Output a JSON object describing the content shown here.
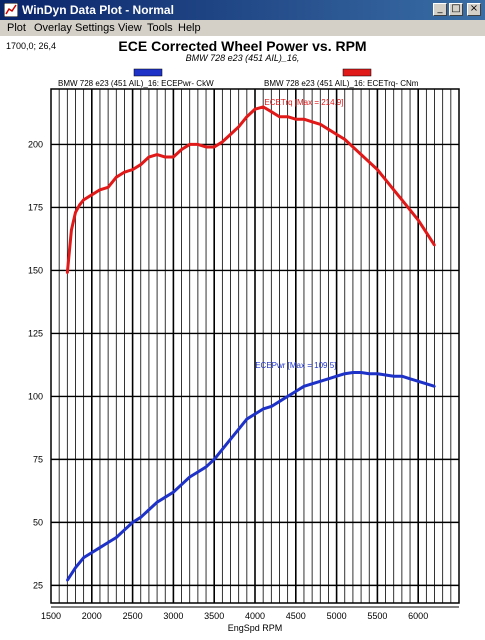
{
  "window": {
    "title": "WinDyn Data Plot - Normal",
    "buttons": {
      "minimize": "_",
      "maximize": "□",
      "close": "×"
    }
  },
  "menu": {
    "items": [
      {
        "name": "plot",
        "label": "Plot"
      },
      {
        "name": "overlay",
        "label": "Overlay"
      },
      {
        "name": "settings",
        "label": "Settings"
      },
      {
        "name": "view",
        "label": "View"
      },
      {
        "name": "tools",
        "label": "Tools"
      },
      {
        "name": "help",
        "label": "Help"
      }
    ]
  },
  "cursor_readout": "1700,0; 26,4",
  "chart_data": {
    "type": "line",
    "title": "ECE Corrected Wheel Power vs. RPM",
    "subtitle": "BMW 728 e23 (451 AIL)_16,",
    "xlabel": "EngSpd  RPM",
    "ylabel": "",
    "xlim": [
      1500,
      6500
    ],
    "ylim": [
      18,
      222
    ],
    "x_ticks": [
      1500,
      2000,
      2500,
      3000,
      3500,
      4000,
      4500,
      5000,
      5500,
      6000
    ],
    "y_ticks": [
      25,
      50,
      75,
      100,
      125,
      150,
      175,
      200
    ],
    "grid": true,
    "legend_position": "top",
    "series": [
      {
        "name": "BMW 728 e23 (451 AIL)_16: ECEPwr- CkW",
        "color": "#1e32c8",
        "annotation": "ECEPwr [Max = 109.5]",
        "x": [
          1700,
          1800,
          1900,
          2000,
          2100,
          2200,
          2300,
          2400,
          2500,
          2600,
          2700,
          2800,
          2900,
          3000,
          3100,
          3200,
          3300,
          3400,
          3500,
          3600,
          3700,
          3800,
          3900,
          4000,
          4100,
          4200,
          4300,
          4400,
          4500,
          4600,
          4700,
          4800,
          4900,
          5000,
          5100,
          5200,
          5300,
          5400,
          5500,
          5600,
          5700,
          5800,
          5900,
          6000,
          6100,
          6200
        ],
        "y": [
          27,
          32,
          36,
          38,
          40,
          42,
          44,
          47,
          50,
          52,
          55,
          58,
          60,
          62,
          65,
          68,
          70,
          72,
          75,
          79,
          83,
          87,
          91,
          93,
          95,
          96,
          98,
          100,
          102,
          104,
          105,
          106,
          107,
          108,
          109,
          109.5,
          109.5,
          109,
          109,
          108.5,
          108,
          108,
          107,
          106,
          105,
          104
        ]
      },
      {
        "name": "BMW 728 e23 (451 AIL)_16: ECETrq- CNm",
        "color": "#e01919",
        "annotation": "ECETrq [Max = 214.9]",
        "x": [
          1700,
          1750,
          1800,
          1850,
          1900,
          2000,
          2100,
          2200,
          2300,
          2400,
          2500,
          2600,
          2700,
          2800,
          2900,
          3000,
          3100,
          3200,
          3300,
          3400,
          3500,
          3600,
          3700,
          3800,
          3900,
          4000,
          4100,
          4200,
          4300,
          4400,
          4500,
          4600,
          4700,
          4800,
          4900,
          5000,
          5100,
          5200,
          5300,
          5400,
          5500,
          5600,
          5700,
          5800,
          5900,
          6000,
          6100,
          6200
        ],
        "y": [
          149,
          166,
          173,
          176,
          178,
          180,
          182,
          183,
          187,
          189,
          190,
          192,
          195,
          196,
          195,
          195,
          198,
          200,
          200,
          199,
          199,
          201,
          204,
          207,
          211,
          214,
          214.9,
          213,
          211,
          211,
          210,
          210,
          209,
          208,
          206,
          204,
          202,
          199,
          196,
          193,
          190,
          186,
          182,
          178,
          174,
          170,
          165,
          160
        ]
      }
    ]
  }
}
